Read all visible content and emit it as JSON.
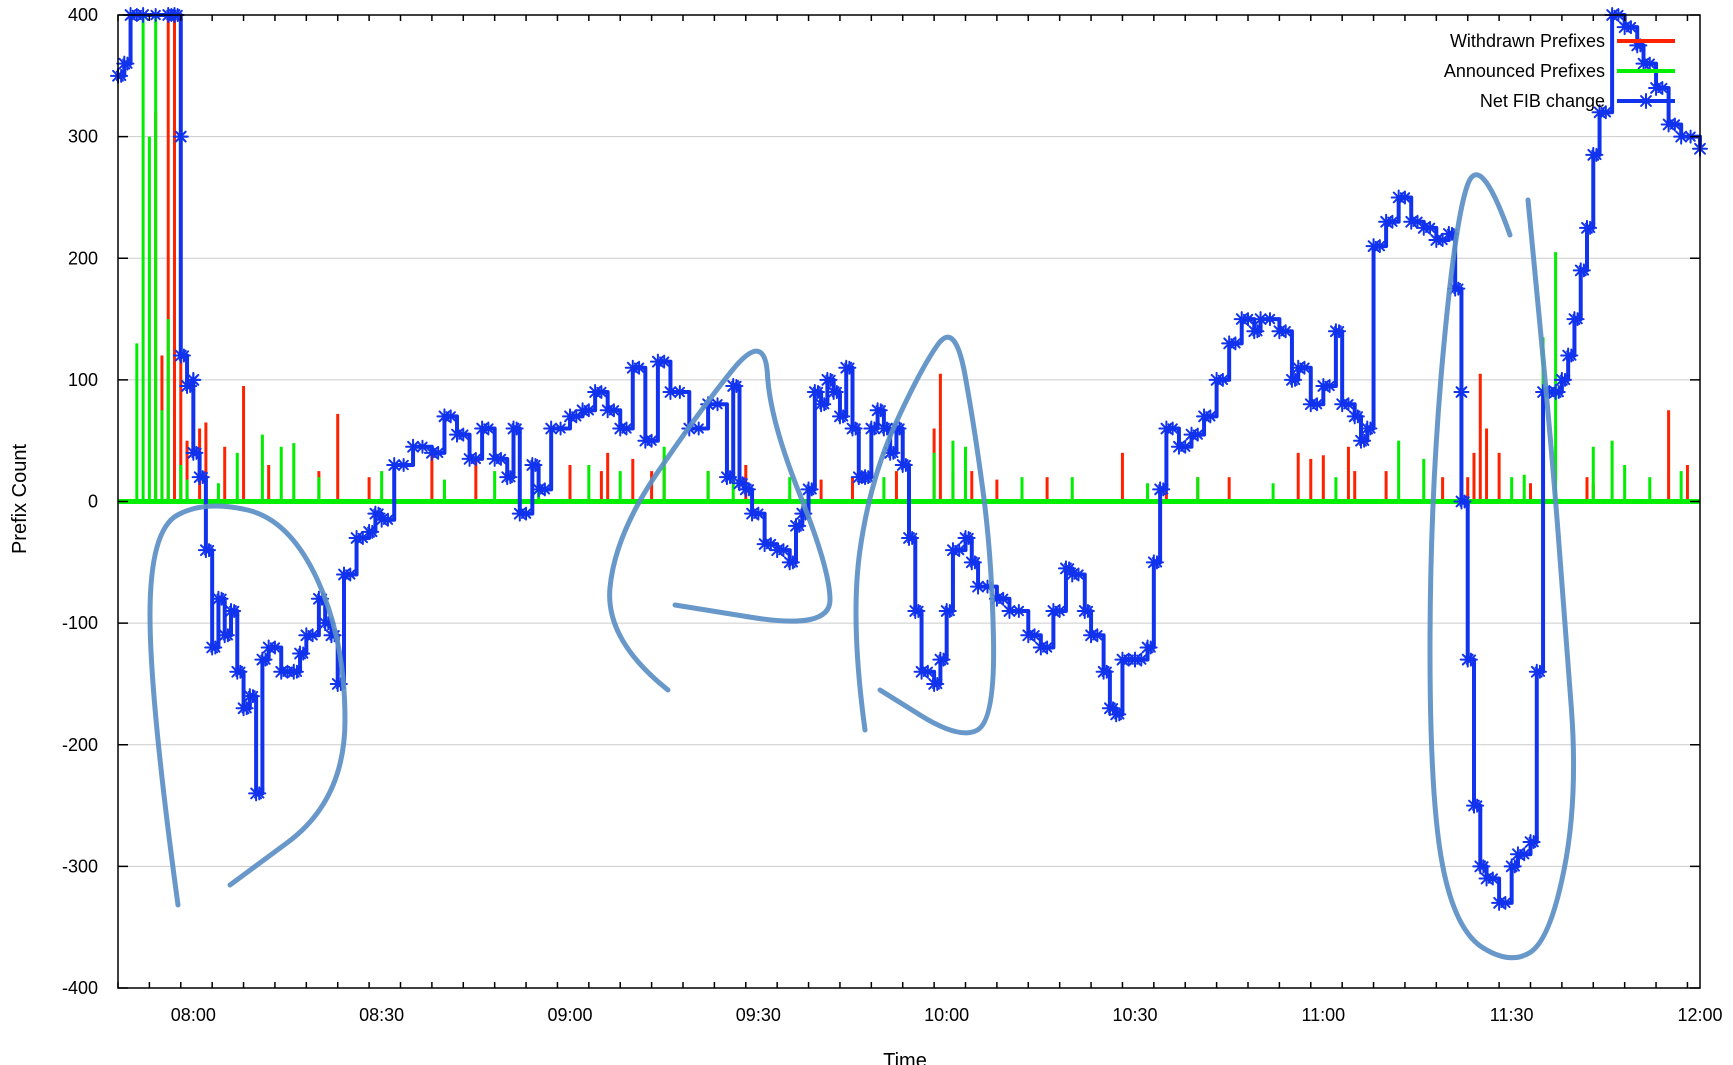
{
  "chart_data": {
    "type": "line",
    "title": "",
    "xlabel": "Time",
    "ylabel": "Prefix Count",
    "ylim": [
      -400,
      400
    ],
    "xlim": [
      "07:48",
      "12:00"
    ],
    "yticks": [
      -400,
      -300,
      -200,
      -100,
      0,
      100,
      200,
      300,
      400
    ],
    "xtick_labels": [
      "08:00",
      "08:30",
      "09:00",
      "09:30",
      "10:00",
      "10:30",
      "11:00",
      "11:30",
      "12:00"
    ],
    "grid": "horizontal",
    "legend_position": "top-right",
    "series": [
      {
        "name": "Withdrawn Prefixes",
        "style": "impulses",
        "color": "#ff2200",
        "points": [
          [
            "07:54",
            320
          ],
          [
            "07:55",
            120
          ],
          [
            "07:56",
            400
          ],
          [
            "07:57",
            270
          ],
          [
            "07:57",
            400
          ],
          [
            "07:58",
            400
          ],
          [
            "07:59",
            50
          ],
          [
            "08:01",
            60
          ],
          [
            "08:02",
            65
          ],
          [
            "08:05",
            45
          ],
          [
            "08:08",
            95
          ],
          [
            "08:12",
            30
          ],
          [
            "08:20",
            25
          ],
          [
            "08:23",
            72
          ],
          [
            "08:28",
            20
          ],
          [
            "08:38",
            40
          ],
          [
            "08:45",
            35
          ],
          [
            "08:52",
            35
          ],
          [
            "09:00",
            30
          ],
          [
            "09:05",
            25
          ],
          [
            "09:06",
            40
          ],
          [
            "09:10",
            35
          ],
          [
            "09:13",
            25
          ],
          [
            "09:15",
            38
          ],
          [
            "09:22",
            25
          ],
          [
            "09:28",
            30
          ],
          [
            "09:40",
            18
          ],
          [
            "09:45",
            20
          ],
          [
            "09:52",
            25
          ],
          [
            "09:58",
            60
          ],
          [
            "09:59",
            105
          ],
          [
            "10:01",
            25
          ],
          [
            "10:04",
            25
          ],
          [
            "10:08",
            18
          ],
          [
            "10:16",
            20
          ],
          [
            "10:28",
            40
          ],
          [
            "10:35",
            35
          ],
          [
            "10:40",
            20
          ],
          [
            "10:45",
            20
          ],
          [
            "10:56",
            40
          ],
          [
            "10:58",
            35
          ],
          [
            "11:00",
            38
          ],
          [
            "11:04",
            45
          ],
          [
            "11:05",
            25
          ],
          [
            "11:10",
            25
          ],
          [
            "11:19",
            20
          ],
          [
            "11:23",
            20
          ],
          [
            "11:24",
            40
          ],
          [
            "11:25",
            105
          ],
          [
            "11:26",
            60
          ],
          [
            "11:28",
            40
          ],
          [
            "11:33",
            15
          ],
          [
            "11:42",
            20
          ],
          [
            "11:43",
            15
          ],
          [
            "11:55",
            75
          ],
          [
            "11:58",
            30
          ]
        ]
      },
      {
        "name": "Announced Prefixes",
        "style": "impulses",
        "color": "#00ee00",
        "points": [
          [
            "07:51",
            130
          ],
          [
            "07:52",
            400
          ],
          [
            "07:53",
            300
          ],
          [
            "07:54",
            400
          ],
          [
            "07:55",
            75
          ],
          [
            "07:56",
            150
          ],
          [
            "07:58",
            30
          ],
          [
            "07:59",
            18
          ],
          [
            "08:04",
            15
          ],
          [
            "08:07",
            40
          ],
          [
            "08:11",
            55
          ],
          [
            "08:14",
            45
          ],
          [
            "08:16",
            48
          ],
          [
            "08:20",
            20
          ],
          [
            "08:30",
            25
          ],
          [
            "08:40",
            18
          ],
          [
            "08:48",
            25
          ],
          [
            "08:55",
            20
          ],
          [
            "09:03",
            30
          ],
          [
            "09:08",
            25
          ],
          [
            "09:15",
            45
          ],
          [
            "09:22",
            25
          ],
          [
            "09:26",
            45
          ],
          [
            "09:35",
            20
          ],
          [
            "09:50",
            20
          ],
          [
            "09:58",
            40
          ],
          [
            "10:01",
            50
          ],
          [
            "10:03",
            45
          ],
          [
            "10:12",
            20
          ],
          [
            "10:20",
            20
          ],
          [
            "10:32",
            15
          ],
          [
            "10:40",
            20
          ],
          [
            "10:52",
            15
          ],
          [
            "11:02",
            20
          ],
          [
            "11:12",
            50
          ],
          [
            "11:16",
            35
          ],
          [
            "11:30",
            20
          ],
          [
            "11:32",
            22
          ],
          [
            "11:35",
            135
          ],
          [
            "11:37",
            205
          ],
          [
            "11:43",
            45
          ],
          [
            "11:46",
            50
          ],
          [
            "11:48",
            30
          ],
          [
            "11:52",
            20
          ],
          [
            "11:57",
            25
          ]
        ]
      },
      {
        "name": "Net FIB change",
        "style": "linespoints",
        "color": "#1133ee",
        "points": [
          [
            "07:48",
            350
          ],
          [
            "07:49",
            360
          ],
          [
            "07:50",
            420
          ],
          [
            "07:52",
            420
          ],
          [
            "07:56",
            420
          ],
          [
            "07:57",
            410
          ],
          [
            "07:58",
            300
          ],
          [
            "07:58",
            120
          ],
          [
            "07:59",
            95
          ],
          [
            "08:00",
            100
          ],
          [
            "08:00",
            40
          ],
          [
            "08:01",
            20
          ],
          [
            "08:02",
            -40
          ],
          [
            "08:03",
            -120
          ],
          [
            "08:04",
            -80
          ],
          [
            "08:05",
            -110
          ],
          [
            "08:06",
            -90
          ],
          [
            "08:07",
            -140
          ],
          [
            "08:08",
            -170
          ],
          [
            "08:09",
            -160
          ],
          [
            "08:10",
            -240
          ],
          [
            "08:11",
            -130
          ],
          [
            "08:12",
            -120
          ],
          [
            "08:14",
            -140
          ],
          [
            "08:16",
            -140
          ],
          [
            "08:17",
            -125
          ],
          [
            "08:18",
            -110
          ],
          [
            "08:20",
            -80
          ],
          [
            "08:21",
            -100
          ],
          [
            "08:22",
            -110
          ],
          [
            "08:23",
            -150
          ],
          [
            "08:24",
            -60
          ],
          [
            "08:26",
            -30
          ],
          [
            "08:28",
            -25
          ],
          [
            "08:29",
            -10
          ],
          [
            "08:30",
            -15
          ],
          [
            "08:32",
            30
          ],
          [
            "08:35",
            45
          ],
          [
            "08:38",
            40
          ],
          [
            "08:40",
            70
          ],
          [
            "08:42",
            55
          ],
          [
            "08:44",
            35
          ],
          [
            "08:46",
            60
          ],
          [
            "08:48",
            35
          ],
          [
            "08:50",
            20
          ],
          [
            "08:51",
            60
          ],
          [
            "08:52",
            -10
          ],
          [
            "08:54",
            30
          ],
          [
            "08:55",
            10
          ],
          [
            "08:57",
            60
          ],
          [
            "09:00",
            70
          ],
          [
            "09:02",
            75
          ],
          [
            "09:04",
            90
          ],
          [
            "09:06",
            75
          ],
          [
            "09:08",
            60
          ],
          [
            "09:10",
            110
          ],
          [
            "09:12",
            50
          ],
          [
            "09:14",
            115
          ],
          [
            "09:16",
            90
          ],
          [
            "09:19",
            60
          ],
          [
            "09:22",
            80
          ],
          [
            "09:25",
            20
          ],
          [
            "09:26",
            95
          ],
          [
            "09:27",
            15
          ],
          [
            "09:28",
            10
          ],
          [
            "09:29",
            -10
          ],
          [
            "09:31",
            -35
          ],
          [
            "09:33",
            -40
          ],
          [
            "09:35",
            -50
          ],
          [
            "09:36",
            -20
          ],
          [
            "09:37",
            -10
          ],
          [
            "09:38",
            10
          ],
          [
            "09:39",
            90
          ],
          [
            "09:40",
            80
          ],
          [
            "09:41",
            100
          ],
          [
            "09:42",
            90
          ],
          [
            "09:43",
            70
          ],
          [
            "09:44",
            110
          ],
          [
            "09:45",
            60
          ],
          [
            "09:46",
            20
          ],
          [
            "09:47",
            20
          ],
          [
            "09:48",
            60
          ],
          [
            "09:49",
            75
          ],
          [
            "09:50",
            60
          ],
          [
            "09:51",
            40
          ],
          [
            "09:52",
            60
          ],
          [
            "09:53",
            30
          ],
          [
            "09:54",
            -30
          ],
          [
            "09:55",
            -90
          ],
          [
            "09:56",
            -140
          ],
          [
            "09:58",
            -150
          ],
          [
            "09:59",
            -130
          ],
          [
            "10:00",
            -90
          ],
          [
            "10:01",
            -40
          ],
          [
            "10:03",
            -30
          ],
          [
            "10:04",
            -50
          ],
          [
            "10:05",
            -70
          ],
          [
            "10:08",
            -80
          ],
          [
            "10:10",
            -90
          ],
          [
            "10:13",
            -110
          ],
          [
            "10:15",
            -120
          ],
          [
            "10:17",
            -90
          ],
          [
            "10:19",
            -55
          ],
          [
            "10:20",
            -60
          ],
          [
            "10:22",
            -90
          ],
          [
            "10:23",
            -110
          ],
          [
            "10:25",
            -140
          ],
          [
            "10:26",
            -170
          ],
          [
            "10:27",
            -175
          ],
          [
            "10:28",
            -130
          ],
          [
            "10:30",
            -130
          ],
          [
            "10:32",
            -120
          ],
          [
            "10:33",
            -50
          ],
          [
            "10:34",
            10
          ],
          [
            "10:35",
            60
          ],
          [
            "10:37",
            45
          ],
          [
            "10:39",
            55
          ],
          [
            "10:41",
            70
          ],
          [
            "10:43",
            100
          ],
          [
            "10:45",
            130
          ],
          [
            "10:47",
            150
          ],
          [
            "10:49",
            140
          ],
          [
            "10:50",
            150
          ],
          [
            "10:53",
            140
          ],
          [
            "10:55",
            100
          ],
          [
            "10:56",
            110
          ],
          [
            "10:58",
            80
          ],
          [
            "11:00",
            95
          ],
          [
            "11:02",
            140
          ],
          [
            "11:03",
            80
          ],
          [
            "11:05",
            70
          ],
          [
            "11:06",
            50
          ],
          [
            "11:07",
            60
          ],
          [
            "11:08",
            210
          ],
          [
            "11:10",
            230
          ],
          [
            "11:12",
            250
          ],
          [
            "11:14",
            230
          ],
          [
            "11:16",
            225
          ],
          [
            "11:18",
            215
          ],
          [
            "11:20",
            220
          ],
          [
            "11:21",
            175
          ],
          [
            "11:22",
            90
          ],
          [
            "11:22",
            0
          ],
          [
            "11:23",
            -130
          ],
          [
            "11:24",
            -250
          ],
          [
            "11:25",
            -300
          ],
          [
            "11:26",
            -310
          ],
          [
            "11:28",
            -330
          ],
          [
            "11:30",
            -300
          ],
          [
            "11:31",
            -290
          ],
          [
            "11:33",
            -280
          ],
          [
            "11:34",
            -140
          ],
          [
            "11:35",
            90
          ],
          [
            "11:37",
            90
          ],
          [
            "11:38",
            100
          ],
          [
            "11:39",
            120
          ],
          [
            "11:40",
            150
          ],
          [
            "11:41",
            190
          ],
          [
            "11:42",
            225
          ],
          [
            "11:43",
            285
          ],
          [
            "11:44",
            320
          ],
          [
            "11:46",
            400
          ],
          [
            "11:48",
            390
          ],
          [
            "11:50",
            375
          ],
          [
            "11:51",
            360
          ],
          [
            "11:53",
            340
          ],
          [
            "11:55",
            310
          ],
          [
            "11:57",
            300
          ],
          [
            "12:00",
            290
          ]
        ]
      }
    ]
  }
}
